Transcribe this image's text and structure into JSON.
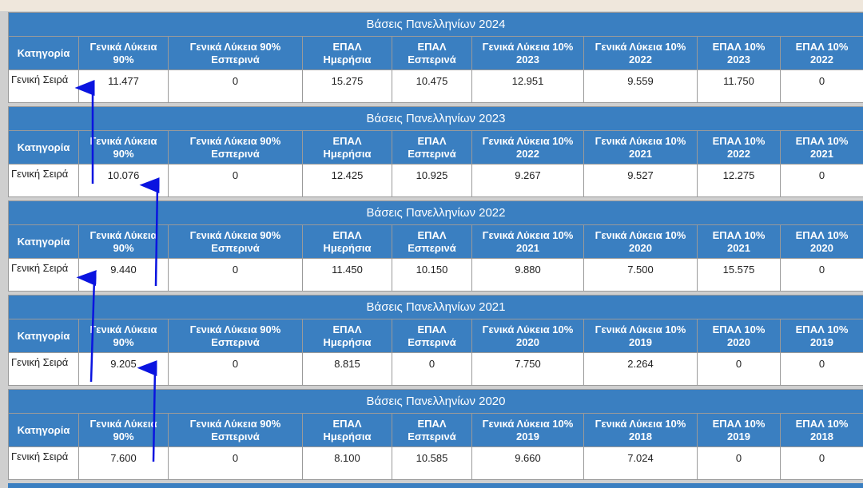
{
  "tables": [
    {
      "title": "Βάσεις Πανελληνίων 2024",
      "header": [
        "Κατηγορία",
        "Γενικά Λύκεια 90%",
        "Γενικά Λύκεια 90% Εσπερινά",
        "ΕΠΑΛ Ημερήσια",
        "ΕΠΑΛ Εσπερινά",
        "Γενικά Λύκεια 10% 2023",
        "Γενικά Λύκεια 10% 2022",
        "ΕΠΑΛ 10% 2023",
        "ΕΠΑΛ 10% 2022"
      ],
      "row": [
        "Γενική Σειρά",
        "11.477",
        "0",
        "15.275",
        "10.475",
        "12.951",
        "9.559",
        "11.750",
        "0"
      ]
    },
    {
      "title": "Βάσεις Πανελληνίων 2023",
      "header": [
        "Κατηγορία",
        "Γενικά Λύκεια 90%",
        "Γενικά Λύκεια 90% Εσπερινά",
        "ΕΠΑΛ Ημερήσια",
        "ΕΠΑΛ Εσπερινά",
        "Γενικά Λύκεια 10% 2022",
        "Γενικά Λύκεια 10% 2021",
        "ΕΠΑΛ 10% 2022",
        "ΕΠΑΛ 10% 2021"
      ],
      "row": [
        "Γενική Σειρά",
        "10.076",
        "0",
        "12.425",
        "10.925",
        "9.267",
        "9.527",
        "12.275",
        "0"
      ]
    },
    {
      "title": "Βάσεις Πανελληνίων 2022",
      "header": [
        "Κατηγορία",
        "Γενικά Λύκεια 90%",
        "Γενικά Λύκεια 90% Εσπερινά",
        "ΕΠΑΛ Ημερήσια",
        "ΕΠΑΛ Εσπερινά",
        "Γενικά Λύκεια 10% 2021",
        "Γενικά Λύκεια 10% 2020",
        "ΕΠΑΛ 10% 2021",
        "ΕΠΑΛ 10% 2020"
      ],
      "row": [
        "Γενική Σειρά",
        "9.440",
        "0",
        "11.450",
        "10.150",
        "9.880",
        "7.500",
        "15.575",
        "0"
      ]
    },
    {
      "title": "Βάσεις Πανελληνίων 2021",
      "header": [
        "Κατηγορία",
        "Γενικά Λύκεια 90%",
        "Γενικά Λύκεια 90% Εσπερινά",
        "ΕΠΑΛ Ημερήσια",
        "ΕΠΑΛ Εσπερινά",
        "Γενικά Λύκεια 10% 2020",
        "Γενικά Λύκεια 10% 2019",
        "ΕΠΑΛ 10% 2020",
        "ΕΠΑΛ 10% 2019"
      ],
      "row": [
        "Γενική Σειρά",
        "9.205",
        "0",
        "8.815",
        "0",
        "7.750",
        "2.264",
        "0",
        "0"
      ]
    },
    {
      "title": "Βάσεις Πανελληνίων 2020",
      "header": [
        "Κατηγορία",
        "Γενικά Λύκεια 90%",
        "Γενικά Λύκεια 90% Εσπερινά",
        "ΕΠΑΛ Ημερήσια",
        "ΕΠΑΛ Εσπερινά",
        "Γενικά Λύκεια 10% 2019",
        "Γενικά Λύκεια 10% 2018",
        "ΕΠΑΛ 10% 2019",
        "ΕΠΑΛ 10% 2018"
      ],
      "row": [
        "Γενική Σειρά",
        "7.600",
        "0",
        "8.100",
        "10.585",
        "9.660",
        "7.024",
        "0",
        "0"
      ]
    }
  ]
}
